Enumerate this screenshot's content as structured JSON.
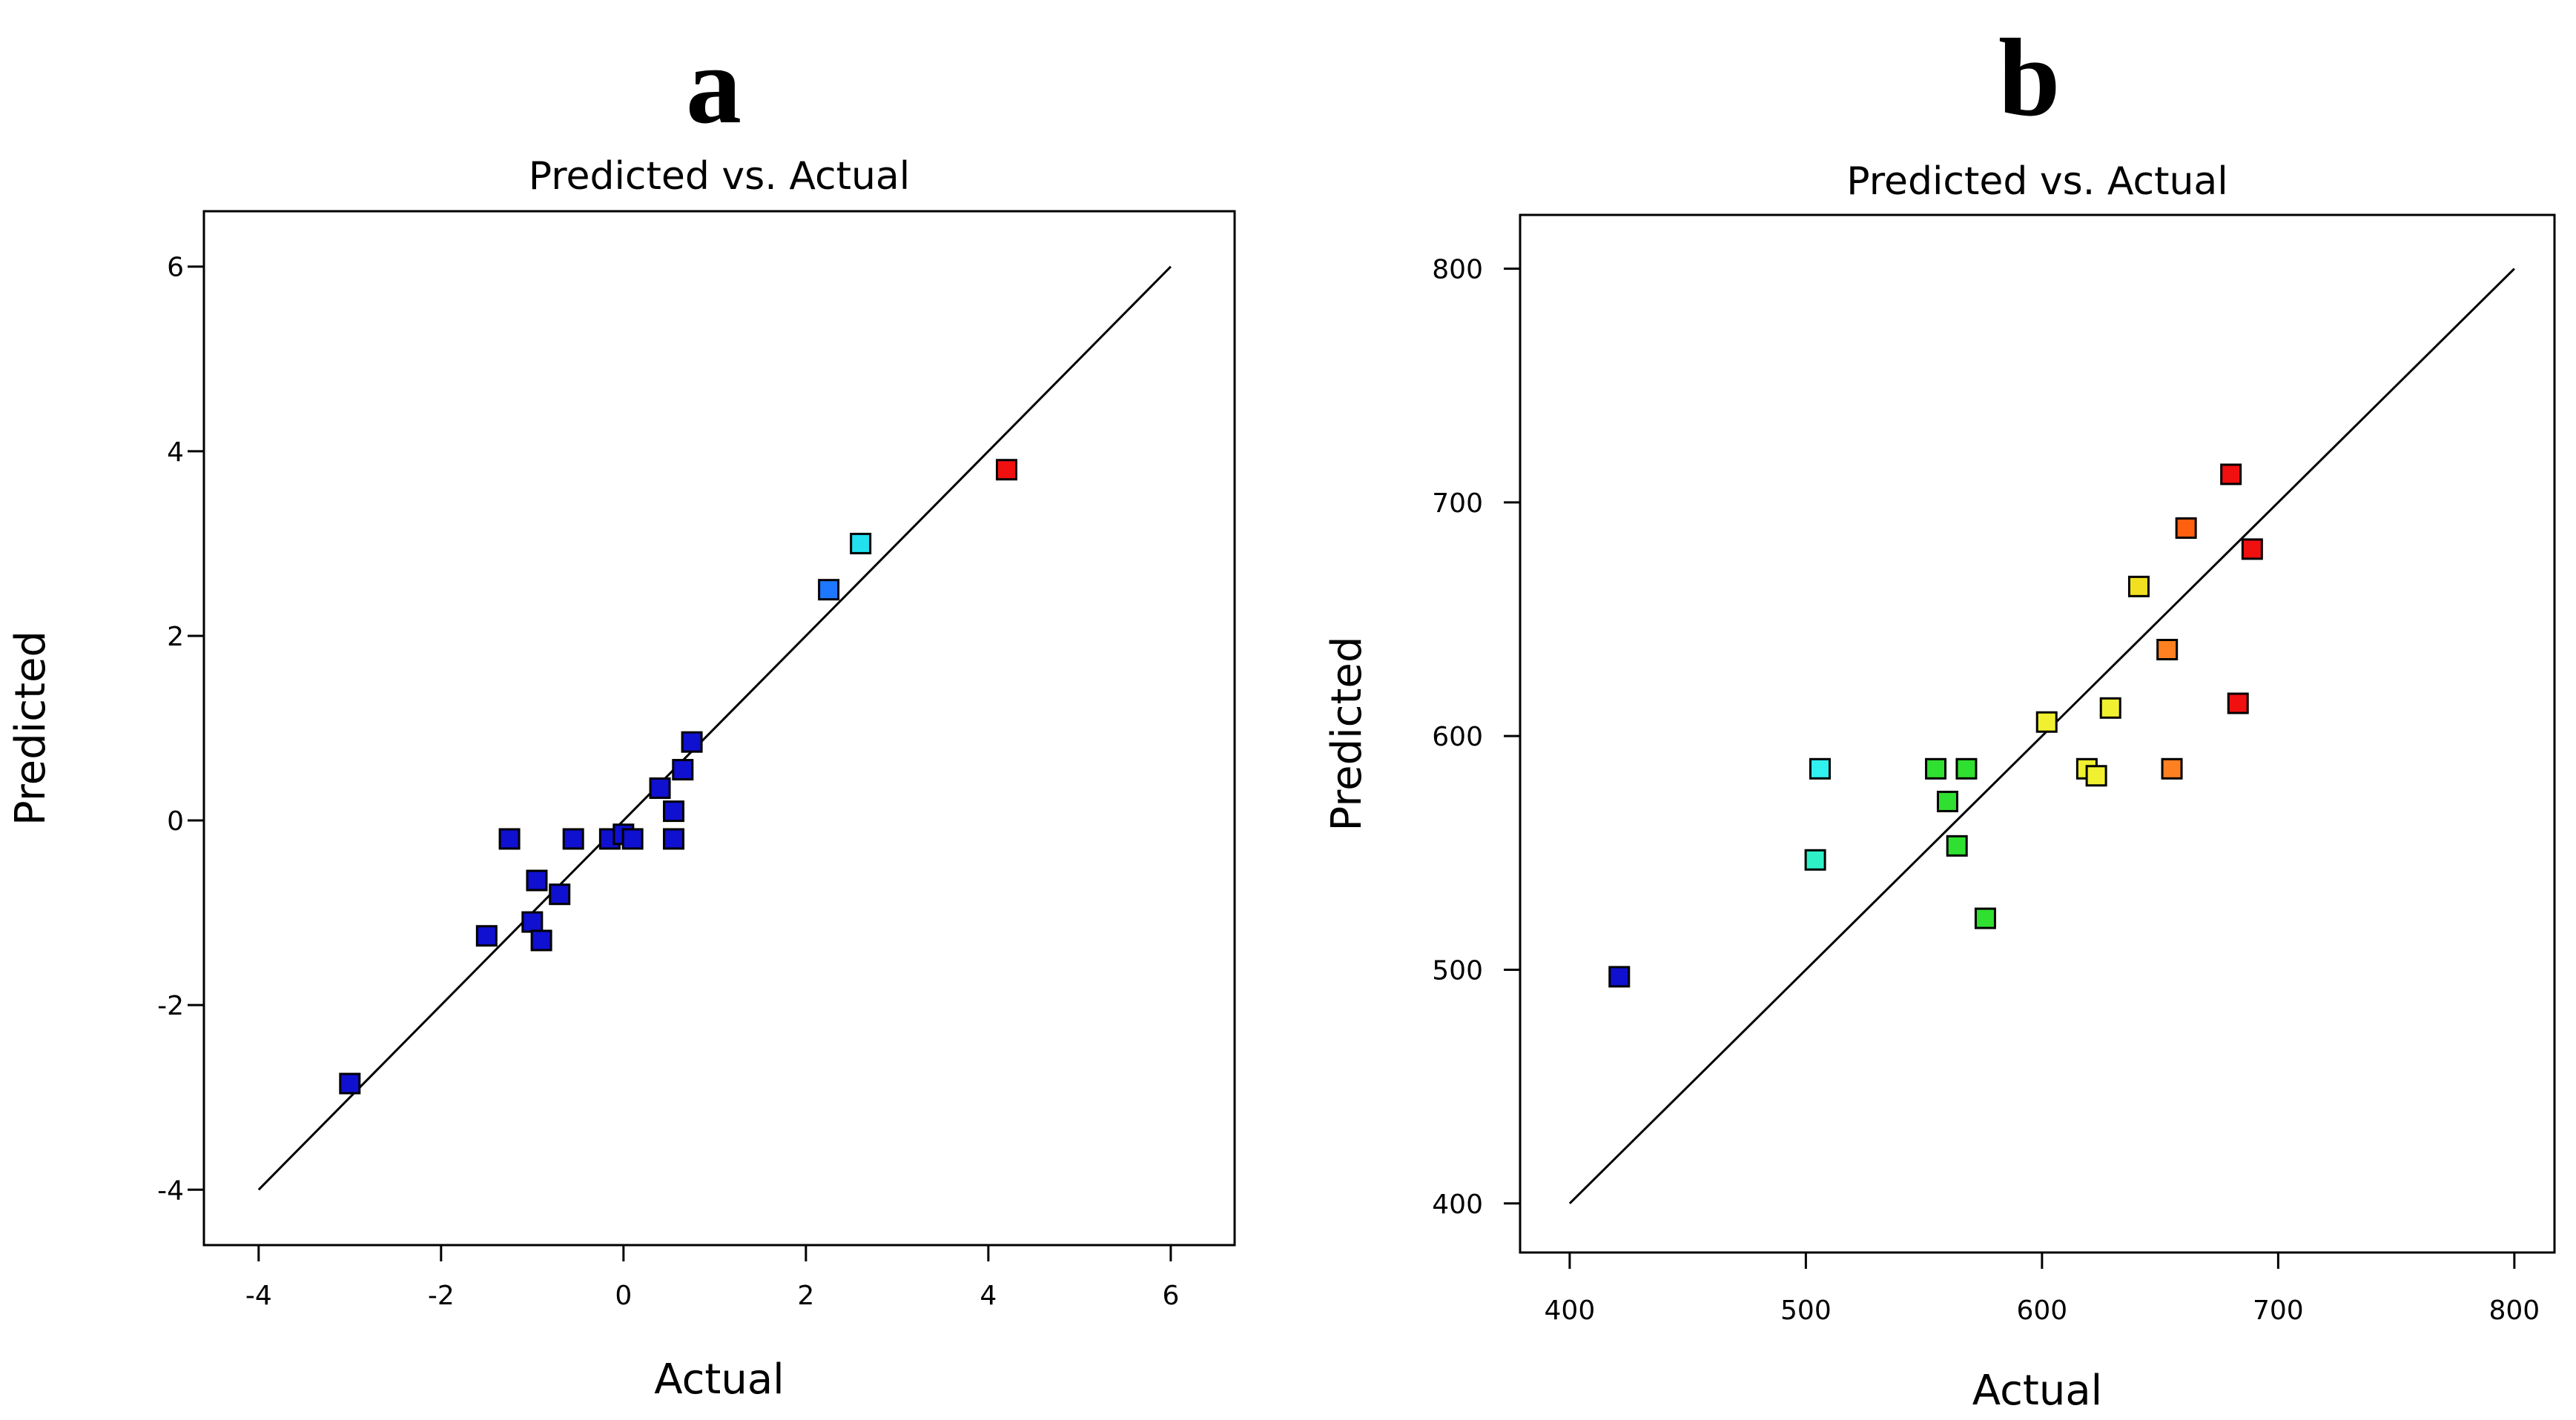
{
  "chart_data": [
    {
      "panel": "a",
      "type": "scatter",
      "title": "Predicted vs. Actual",
      "xlabel": "Actual",
      "ylabel": "Predicted",
      "xlim": [
        -4.6,
        6.7
      ],
      "ylim": [
        -4.6,
        6.6
      ],
      "xticks": [
        -4,
        -2,
        0,
        2,
        4,
        6
      ],
      "yticks": [
        -4,
        -2,
        0,
        2,
        4,
        6
      ],
      "xtick_labels": [
        "-4",
        "-2",
        "0",
        "2",
        "4",
        "6"
      ],
      "ytick_labels": [
        "-4",
        "-2",
        "0",
        "2",
        "4",
        "6"
      ],
      "reference_line": [
        [
          -4,
          -4
        ],
        [
          6,
          6
        ]
      ],
      "points": [
        {
          "x": -3.0,
          "y": -2.85,
          "color": "#1010d0"
        },
        {
          "x": -1.5,
          "y": -1.25,
          "color": "#1010d0"
        },
        {
          "x": -1.25,
          "y": -0.2,
          "color": "#1010d0"
        },
        {
          "x": -1.0,
          "y": -1.1,
          "color": "#1010d0"
        },
        {
          "x": -0.95,
          "y": -0.65,
          "color": "#1010d0"
        },
        {
          "x": -0.9,
          "y": -1.3,
          "color": "#1010d0"
        },
        {
          "x": -0.7,
          "y": -0.8,
          "color": "#1010d0"
        },
        {
          "x": -0.55,
          "y": -0.2,
          "color": "#1010d0"
        },
        {
          "x": -0.15,
          "y": -0.2,
          "color": "#1010d0"
        },
        {
          "x": 0.0,
          "y": -0.15,
          "color": "#1010d0"
        },
        {
          "x": 0.1,
          "y": -0.2,
          "color": "#1010d0"
        },
        {
          "x": 0.4,
          "y": 0.35,
          "color": "#1010d0"
        },
        {
          "x": 0.55,
          "y": 0.1,
          "color": "#1010d0"
        },
        {
          "x": 0.55,
          "y": -0.2,
          "color": "#1010d0"
        },
        {
          "x": 0.65,
          "y": 0.55,
          "color": "#1010d0"
        },
        {
          "x": 0.75,
          "y": 0.85,
          "color": "#1010d0"
        },
        {
          "x": 2.25,
          "y": 2.5,
          "color": "#1e78ff"
        },
        {
          "x": 2.6,
          "y": 3.0,
          "color": "#22e0f0"
        },
        {
          "x": 4.2,
          "y": 3.8,
          "color": "#f01010"
        }
      ]
    },
    {
      "panel": "b",
      "type": "scatter",
      "title": "Predicted vs. Actual",
      "xlabel": "Actual",
      "ylabel": "Predicted",
      "xlim": [
        379,
        817
      ],
      "ylim": [
        379,
        823
      ],
      "xticks": [
        400,
        500,
        600,
        700,
        800
      ],
      "yticks": [
        400,
        500,
        600,
        700,
        800
      ],
      "xtick_labels": [
        "400",
        "500",
        "600",
        "700",
        "800"
      ],
      "ytick_labels": [
        "400",
        "500",
        "600",
        "700",
        "800"
      ],
      "reference_line": [
        [
          400,
          400
        ],
        [
          800,
          800
        ]
      ],
      "points": [
        {
          "x": 421,
          "y": 497,
          "color": "#1010d0"
        },
        {
          "x": 504,
          "y": 547,
          "color": "#30f0c8"
        },
        {
          "x": 506,
          "y": 586,
          "color": "#30f0f0"
        },
        {
          "x": 555,
          "y": 586,
          "color": "#30e030"
        },
        {
          "x": 560,
          "y": 572,
          "color": "#30e030"
        },
        {
          "x": 564,
          "y": 553,
          "color": "#30e030"
        },
        {
          "x": 568,
          "y": 586,
          "color": "#30e030"
        },
        {
          "x": 576,
          "y": 522,
          "color": "#30e030"
        },
        {
          "x": 602,
          "y": 606,
          "color": "#f0f030"
        },
        {
          "x": 619,
          "y": 586,
          "color": "#f0f030"
        },
        {
          "x": 623,
          "y": 583,
          "color": "#f0f030"
        },
        {
          "x": 629,
          "y": 612,
          "color": "#f0f030"
        },
        {
          "x": 641,
          "y": 664,
          "color": "#f0e020"
        },
        {
          "x": 653,
          "y": 637,
          "color": "#ff8020"
        },
        {
          "x": 655,
          "y": 586,
          "color": "#ff8020"
        },
        {
          "x": 661,
          "y": 689,
          "color": "#ff6010"
        },
        {
          "x": 680,
          "y": 712,
          "color": "#f01010"
        },
        {
          "x": 683,
          "y": 614,
          "color": "#f01010"
        },
        {
          "x": 689,
          "y": 680,
          "color": "#f01010"
        }
      ]
    }
  ]
}
